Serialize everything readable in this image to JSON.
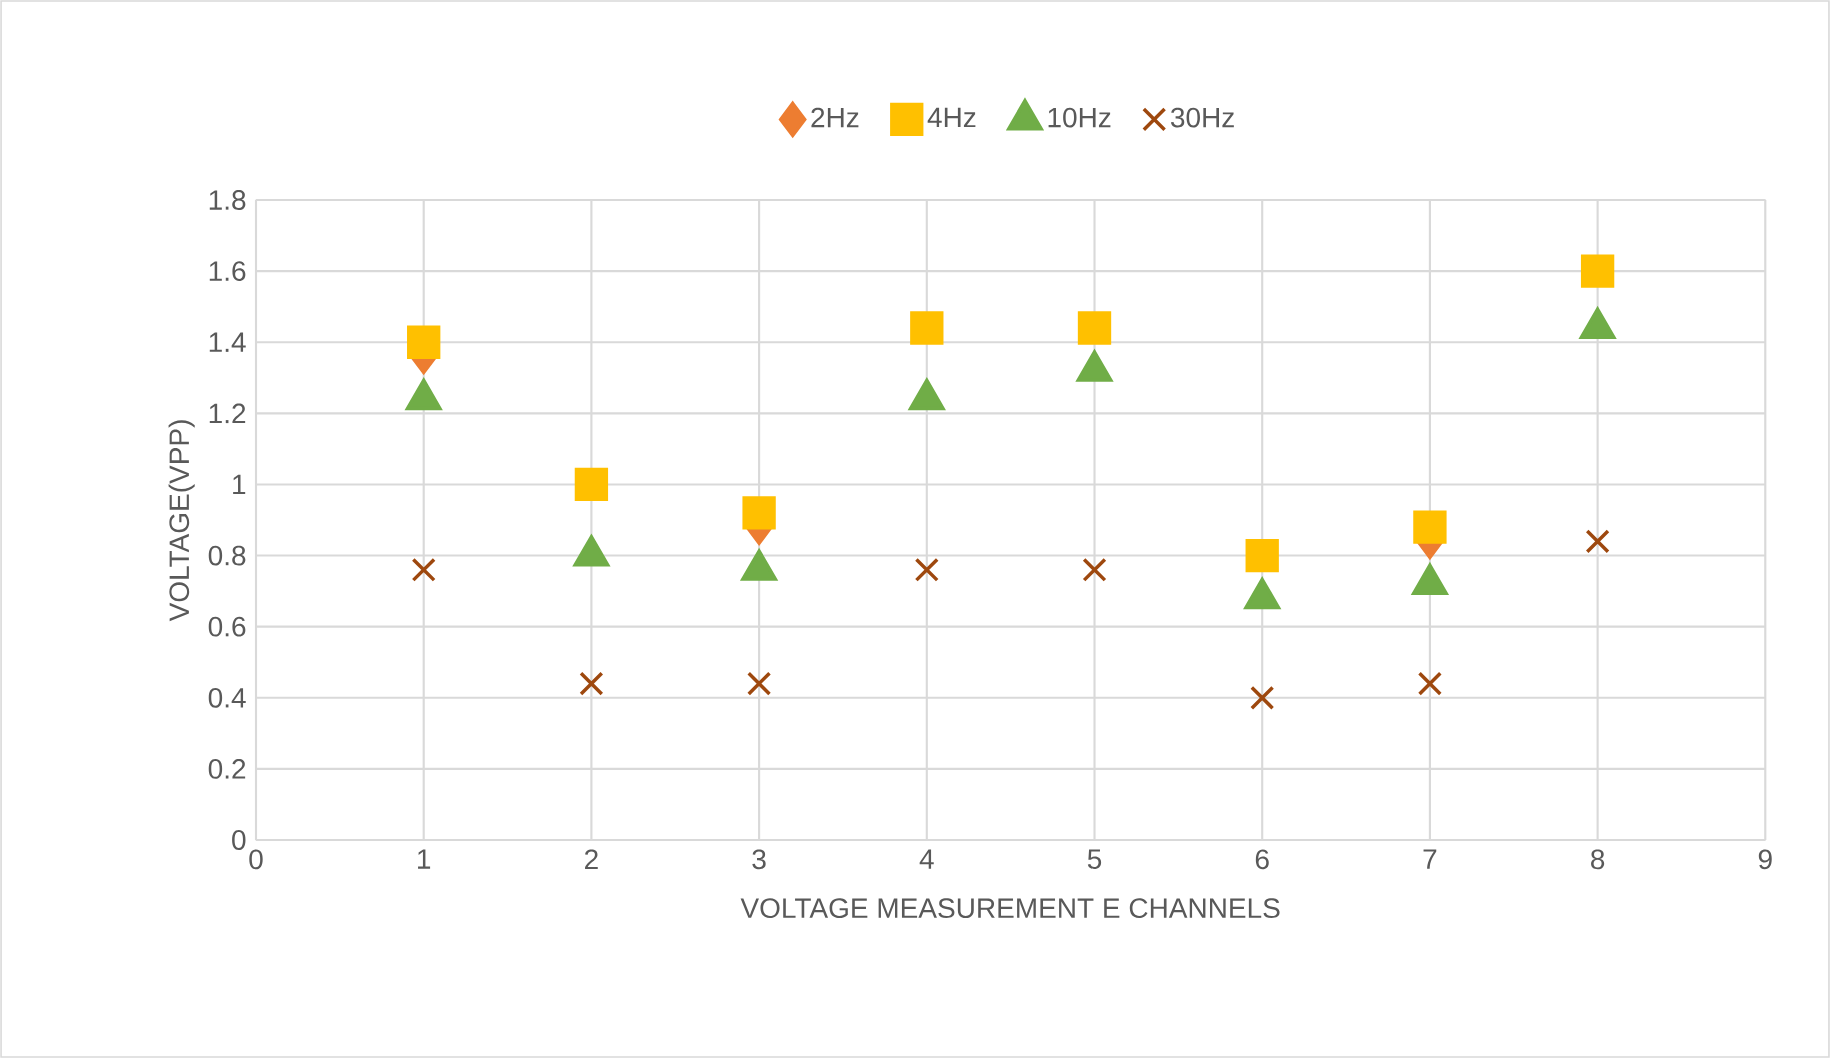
{
  "chart_data": {
    "type": "scatter",
    "xlabel": "VOLTAGE MEASUREMENT E CHANNELS",
    "ylabel": "VOLTAGE(VPP)",
    "x": [
      1,
      2,
      3,
      4,
      5,
      6,
      7,
      8
    ],
    "series": [
      {
        "name": "2Hz",
        "color": "#ed7d31",
        "marker": "diamond",
        "values": [
          1.36,
          null,
          0.88,
          null,
          null,
          null,
          0.84,
          null
        ]
      },
      {
        "name": "4Hz",
        "color": "#ffc000",
        "marker": "square",
        "values": [
          1.4,
          1.0,
          0.92,
          1.44,
          1.44,
          0.8,
          0.88,
          1.6
        ]
      },
      {
        "name": "10Hz",
        "color": "#70ad47",
        "marker": "triangle",
        "values": [
          1.24,
          0.8,
          0.76,
          1.24,
          1.32,
          0.68,
          0.72,
          1.44
        ]
      },
      {
        "name": "30Hz",
        "color": "#9e480e",
        "marker": "cross",
        "values": [
          0.76,
          0.44,
          0.44,
          0.76,
          0.76,
          0.4,
          0.44,
          0.84
        ]
      }
    ],
    "xlim": [
      0,
      9
    ],
    "xticks": [
      0,
      1,
      2,
      3,
      4,
      5,
      6,
      7,
      8,
      9
    ],
    "ylim": [
      0,
      1.8
    ],
    "yticks": [
      0,
      0.2,
      0.4,
      0.6,
      0.8,
      {
        "value": 1,
        "label": "1"
      },
      1.2,
      1.4,
      1.6,
      1.8
    ],
    "grid": true,
    "legend": "top"
  }
}
